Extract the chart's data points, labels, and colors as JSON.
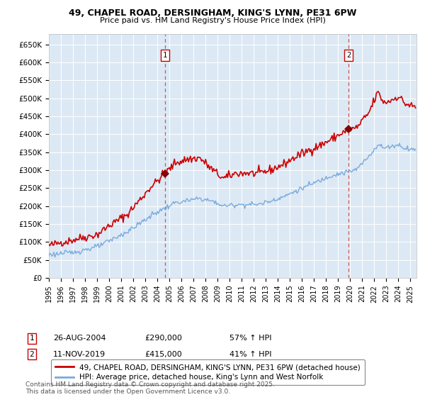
{
  "title1": "49, CHAPEL ROAD, DERSINGHAM, KING'S LYNN, PE31 6PW",
  "title2": "Price paid vs. HM Land Registry's House Price Index (HPI)",
  "fig_bg_color": "#f0f0f0",
  "plot_bg_color": "#dce9f5",
  "red_line_color": "#cc0000",
  "blue_line_color": "#7aaadd",
  "grid_color": "#ffffff",
  "marker1_date_str": "26-AUG-2004",
  "marker1_price": "£290,000",
  "marker1_hpi": "57% ↑ HPI",
  "marker1_x": 2004.63,
  "marker1_y": 290000,
  "marker2_date_str": "11-NOV-2019",
  "marker2_price": "£415,000",
  "marker2_hpi": "41% ↑ HPI",
  "marker2_x": 2019.87,
  "marker2_y": 415000,
  "legend_line1": "49, CHAPEL ROAD, DERSINGHAM, KING'S LYNN, PE31 6PW (detached house)",
  "legend_line2": "HPI: Average price, detached house, King's Lynn and West Norfolk",
  "footer": "Contains HM Land Registry data © Crown copyright and database right 2025.\nThis data is licensed under the Open Government Licence v3.0.",
  "ylim_max": 680000,
  "yticks": [
    0,
    50000,
    100000,
    150000,
    200000,
    250000,
    300000,
    350000,
    400000,
    450000,
    500000,
    550000,
    600000,
    650000
  ],
  "ytick_labels": [
    "£0",
    "£50K",
    "£100K",
    "£150K",
    "£200K",
    "£250K",
    "£300K",
    "£350K",
    "£400K",
    "£450K",
    "£500K",
    "£550K",
    "£600K",
    "£650K"
  ],
  "xmin": 1995.0,
  "xmax": 2025.5
}
